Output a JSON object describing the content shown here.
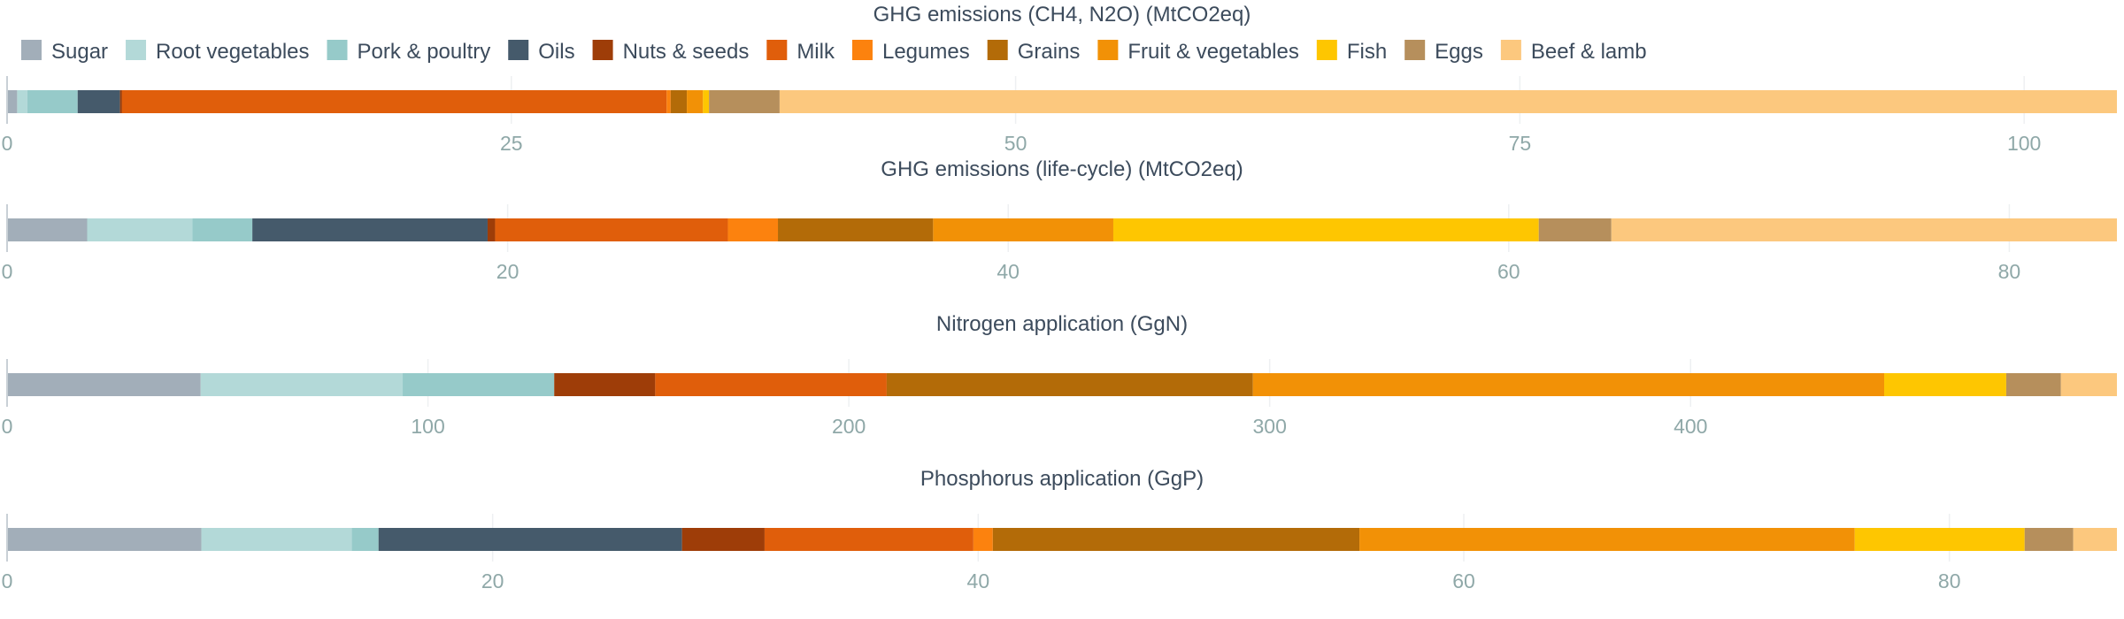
{
  "chart_data": {
    "type": "bar",
    "orientation": "horizontal-stacked",
    "legend_position": "top-left",
    "grid": true,
    "categories": [
      "Sugar",
      "Root vegetables",
      "Pork & poultry",
      "Oils",
      "Nuts & seeds",
      "Milk",
      "Legumes",
      "Grains",
      "Fruit & vegetables",
      "Fish",
      "Eggs",
      "Beef & lamb"
    ],
    "colors": [
      "#a2aeb9",
      "#b3d9d8",
      "#96cac9",
      "#455a6b",
      "#9e3d08",
      "#e05e0b",
      "#fc820e",
      "#b36b08",
      "#f29106",
      "#fec601",
      "#b68f5c",
      "#fcc87e"
    ],
    "panels": [
      {
        "title": "GHG emissions (CH4, N2O) (MtCO2eq)",
        "xlim": [
          0,
          104.6
        ],
        "ticks": [
          0,
          25,
          50,
          75,
          100
        ],
        "values": [
          0.5,
          0.5,
          2.5,
          2.1,
          0.1,
          27.0,
          0.2,
          0.8,
          0.8,
          0.3,
          3.5,
          66.3
        ]
      },
      {
        "title": "GHG emissions (life-cycle) (MtCO2eq)",
        "xlim": [
          0,
          84.3
        ],
        "ticks": [
          0,
          20,
          40,
          60,
          80
        ],
        "values": [
          3.2,
          4.2,
          2.4,
          9.4,
          0.3,
          9.3,
          2.0,
          6.2,
          7.2,
          17.0,
          2.9,
          20.2
        ]
      },
      {
        "title": "Nitrogen application (GgN)",
        "xlim": [
          0,
          501.3
        ],
        "ticks": [
          0,
          100,
          200,
          300,
          400
        ],
        "values": [
          46,
          48,
          36,
          0,
          24,
          55,
          0,
          87,
          150,
          29,
          13,
          13.3
        ]
      },
      {
        "title": "Phosphorus application (GgP)",
        "xlim": [
          0,
          86.9
        ],
        "ticks": [
          0,
          20,
          40,
          60,
          80
        ],
        "values": [
          8.0,
          6.2,
          1.1,
          12.5,
          3.4,
          8.6,
          0.8,
          15.1,
          20.4,
          7.0,
          2.0,
          1.8
        ]
      }
    ]
  }
}
